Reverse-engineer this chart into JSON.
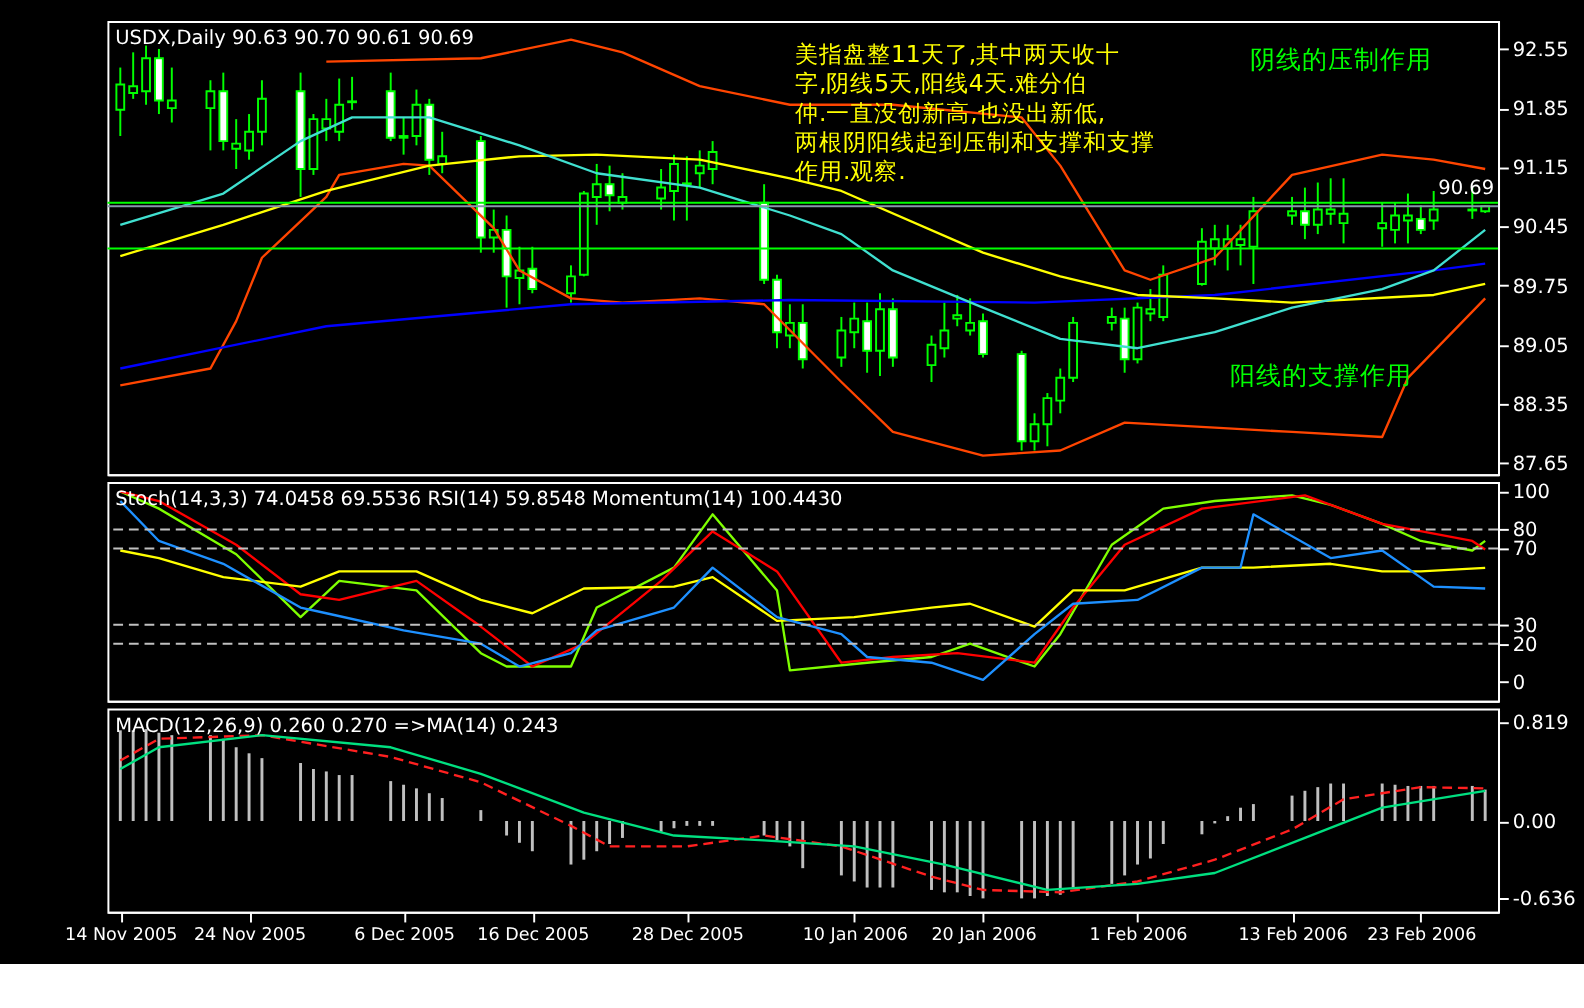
{
  "chart_data": [
    {
      "type": "candlestick",
      "title": "USDX,Daily  90.63 90.70 90.61 90.69",
      "tick_labels": "y",
      "xlim": [
        "2005-11-13",
        "2006-03-01"
      ],
      "x": [
        "2005-11-14",
        "2005-11-15",
        "2005-11-16",
        "2005-11-17",
        "2005-11-18",
        "2005-11-21",
        "2005-11-22",
        "2005-11-23",
        "2005-11-24",
        "2005-11-25",
        "2005-11-28",
        "2005-11-29",
        "2005-11-30",
        "2005-12-01",
        "2005-12-02",
        "2005-12-05",
        "2005-12-06",
        "2005-12-07",
        "2005-12-08",
        "2005-12-09",
        "2005-12-12",
        "2005-12-13",
        "2005-12-14",
        "2005-12-15",
        "2005-12-16",
        "2005-12-19",
        "2005-12-20",
        "2005-12-21",
        "2005-12-22",
        "2005-12-23",
        "2005-12-26",
        "2005-12-27",
        "2005-12-28",
        "2005-12-29",
        "2005-12-30",
        "2006-01-03",
        "2006-01-04",
        "2006-01-05",
        "2006-01-06",
        "2006-01-09",
        "2006-01-10",
        "2006-01-11",
        "2006-01-12",
        "2006-01-13",
        "2006-01-16",
        "2006-01-17",
        "2006-01-18",
        "2006-01-19",
        "2006-01-20",
        "2006-01-23",
        "2006-01-24",
        "2006-01-25",
        "2006-01-26",
        "2006-01-27",
        "2006-01-30",
        "2006-01-31",
        "2006-02-01",
        "2006-02-02",
        "2006-02-03",
        "2006-02-06",
        "2006-02-07",
        "2006-02-08",
        "2006-02-09",
        "2006-02-10",
        "2006-02-13",
        "2006-02-14",
        "2006-02-15",
        "2006-02-16",
        "2006-02-17",
        "2006-02-20",
        "2006-02-21",
        "2006-02-22",
        "2006-02-23",
        "2006-02-24",
        "2006-02-27",
        "2006-02-28"
      ],
      "ohlc": [
        [
          91.83,
          92.33,
          91.52,
          92.13
        ],
        [
          92.03,
          92.51,
          91.96,
          92.11
        ],
        [
          92.05,
          92.59,
          91.89,
          92.44
        ],
        [
          92.44,
          92.55,
          91.78,
          91.94
        ],
        [
          91.85,
          92.33,
          91.68,
          91.94
        ],
        [
          91.85,
          92.18,
          91.35,
          92.05
        ],
        [
          92.05,
          92.27,
          91.35,
          91.46
        ],
        [
          91.37,
          91.72,
          91.13,
          91.43
        ],
        [
          91.35,
          91.78,
          91.24,
          91.57
        ],
        [
          91.57,
          92.18,
          91.41,
          91.96
        ],
        [
          92.05,
          92.27,
          90.8,
          91.13
        ],
        [
          91.13,
          91.78,
          91.06,
          91.72
        ],
        [
          91.61,
          91.96,
          91.46,
          91.72
        ],
        [
          91.57,
          92.2,
          91.46,
          91.89
        ],
        [
          91.92,
          92.22,
          91.83,
          91.93
        ],
        [
          92.05,
          92.27,
          91.46,
          91.5
        ],
        [
          91.5,
          91.74,
          91.3,
          91.52
        ],
        [
          91.52,
          92.07,
          91.41,
          91.89
        ],
        [
          91.89,
          91.96,
          91.06,
          91.24
        ],
        [
          91.19,
          91.57,
          91.08,
          91.28
        ],
        [
          91.46,
          91.52,
          90.14,
          90.32
        ],
        [
          90.32,
          90.65,
          90.14,
          90.41
        ],
        [
          90.41,
          90.58,
          89.49,
          89.86
        ],
        [
          89.84,
          90.21,
          89.53,
          89.93
        ],
        [
          89.95,
          90.21,
          89.66,
          89.71
        ],
        [
          89.66,
          89.99,
          89.55,
          89.86
        ],
        [
          89.88,
          90.87,
          89.86,
          90.84
        ],
        [
          90.8,
          91.19,
          90.47,
          90.95
        ],
        [
          90.95,
          91.17,
          90.63,
          90.82
        ],
        [
          90.73,
          91.08,
          90.65,
          90.8
        ],
        [
          90.78,
          91.13,
          90.65,
          90.91
        ],
        [
          90.87,
          91.3,
          90.52,
          91.19
        ],
        [
          90.95,
          91.28,
          90.52,
          90.96
        ],
        [
          91.08,
          91.35,
          90.91,
          91.17
        ],
        [
          91.13,
          91.46,
          90.95,
          91.33
        ],
        [
          90.73,
          90.95,
          89.77,
          89.82
        ],
        [
          89.82,
          89.88,
          89.01,
          89.2
        ],
        [
          89.16,
          89.53,
          89.01,
          89.31
        ],
        [
          89.31,
          89.53,
          88.77,
          88.88
        ],
        [
          88.9,
          89.38,
          88.79,
          89.22
        ],
        [
          89.2,
          89.55,
          89.01,
          89.36
        ],
        [
          89.33,
          89.55,
          88.72,
          88.98
        ],
        [
          88.98,
          89.66,
          88.68,
          89.47
        ],
        [
          89.47,
          89.6,
          88.79,
          88.9
        ],
        [
          88.81,
          89.16,
          88.61,
          89.05
        ],
        [
          89.01,
          89.55,
          88.9,
          89.22
        ],
        [
          89.36,
          89.64,
          89.27,
          89.4
        ],
        [
          89.22,
          89.6,
          89.16,
          89.31
        ],
        [
          89.33,
          89.42,
          88.9,
          88.94
        ],
        [
          88.94,
          88.98,
          87.8,
          87.91
        ],
        [
          87.91,
          88.24,
          87.8,
          88.11
        ],
        [
          88.11,
          88.48,
          87.85,
          88.42
        ],
        [
          88.39,
          88.77,
          88.24,
          88.66
        ],
        [
          88.66,
          89.38,
          88.61,
          89.31
        ],
        [
          89.31,
          89.49,
          89.22,
          89.38
        ],
        [
          89.36,
          89.49,
          88.72,
          88.88
        ],
        [
          88.88,
          89.55,
          88.83,
          89.49
        ],
        [
          89.42,
          89.71,
          89.33,
          89.47
        ],
        [
          89.38,
          89.99,
          89.33,
          89.88
        ],
        [
          89.77,
          90.43,
          89.75,
          90.27
        ],
        [
          90.19,
          90.47,
          89.99,
          90.3
        ],
        [
          90.19,
          90.47,
          89.93,
          90.3
        ],
        [
          90.23,
          90.47,
          89.99,
          90.3
        ],
        [
          90.21,
          90.8,
          89.77,
          90.63
        ],
        [
          90.58,
          90.8,
          90.47,
          90.63
        ],
        [
          90.63,
          90.91,
          90.3,
          90.47
        ],
        [
          90.47,
          90.97,
          90.36,
          90.65
        ],
        [
          90.6,
          91.02,
          90.47,
          90.65
        ],
        [
          90.49,
          91.02,
          90.25,
          90.6
        ],
        [
          90.43,
          90.73,
          90.21,
          90.49
        ],
        [
          90.41,
          90.73,
          90.25,
          90.58
        ],
        [
          90.52,
          90.84,
          90.25,
          90.58
        ],
        [
          90.54,
          90.7,
          90.36,
          90.41
        ],
        [
          90.52,
          90.87,
          90.41,
          90.65
        ],
        [
          90.64,
          90.91,
          90.54,
          90.65
        ],
        [
          90.63,
          90.7,
          90.61,
          90.69
        ]
      ],
      "series": [
        {
          "type": "line",
          "color": "#ff4500",
          "x": [
            "2005-11-30",
            "2005-12-12",
            "2005-12-19",
            "2005-12-23",
            "2005-12-29",
            "2006-01-05",
            "2006-01-13",
            "2006-01-23",
            "2006-01-26",
            "2006-01-31",
            "2006-02-02",
            "2006-02-07",
            "2006-02-13",
            "2006-02-20",
            "2006-02-24",
            "2006-02-28"
          ],
          "values": [
            92.4,
            92.44,
            92.66,
            92.51,
            92.11,
            91.89,
            91.89,
            91.74,
            91.17,
            89.93,
            89.82,
            90.08,
            91.06,
            91.3,
            91.24,
            91.13
          ]
        },
        {
          "type": "line",
          "color": "#ff4500",
          "x": [
            "2005-11-14",
            "2005-11-21",
            "2005-11-23",
            "2005-11-25",
            "2005-11-30",
            "2005-12-01",
            "2005-12-06",
            "2005-12-08",
            "2005-12-13",
            "2005-12-15",
            "2005-12-19",
            "2005-12-23",
            "2005-12-29",
            "2006-01-03",
            "2006-01-09",
            "2006-01-13",
            "2006-01-20",
            "2006-01-26",
            "2006-01-31",
            "2006-02-07",
            "2006-02-13",
            "2006-02-20",
            "2006-02-22",
            "2006-02-28"
          ],
          "values": [
            88.57,
            88.77,
            89.33,
            90.08,
            90.8,
            91.06,
            91.19,
            91.17,
            90.43,
            89.93,
            89.6,
            89.55,
            89.6,
            89.53,
            88.61,
            88.02,
            87.74,
            87.8,
            88.13,
            88.07,
            88.02,
            87.96,
            88.66,
            89.6
          ]
        },
        {
          "type": "line",
          "color": "#0000ff",
          "x": [
            "2005-11-14",
            "2005-11-30",
            "2005-12-19",
            "2006-01-05",
            "2006-01-24",
            "2006-02-07",
            "2006-02-24",
            "2006-02-28"
          ],
          "values": [
            88.77,
            89.27,
            89.53,
            89.58,
            89.55,
            89.64,
            89.93,
            90.01
          ]
        },
        {
          "type": "line",
          "color": "#ffff00",
          "x": [
            "2005-11-14",
            "2005-11-22",
            "2005-11-30",
            "2005-12-08",
            "2005-12-15",
            "2005-12-21",
            "2005-12-29",
            "2006-01-05",
            "2006-01-09",
            "2006-01-20",
            "2006-01-26",
            "2006-02-01",
            "2006-02-07",
            "2006-02-13",
            "2006-02-24",
            "2006-02-28"
          ],
          "values": [
            90.1,
            90.47,
            90.87,
            91.17,
            91.28,
            91.3,
            91.24,
            91.02,
            90.87,
            90.14,
            89.86,
            89.64,
            89.6,
            89.55,
            89.64,
            89.77
          ]
        },
        {
          "type": "line",
          "color": "#40e0d0",
          "x": [
            "2005-11-14",
            "2005-11-22",
            "2005-11-28",
            "2005-12-02",
            "2005-12-08",
            "2005-12-15",
            "2005-12-21",
            "2005-12-29",
            "2006-01-05",
            "2006-01-09",
            "2006-01-13",
            "2006-01-20",
            "2006-01-26",
            "2006-02-01",
            "2006-02-07",
            "2006-02-13",
            "2006-02-20",
            "2006-02-24",
            "2006-02-28"
          ],
          "values": [
            90.47,
            90.84,
            91.46,
            91.74,
            91.74,
            91.41,
            91.08,
            90.91,
            90.58,
            90.36,
            89.93,
            89.49,
            89.12,
            89.01,
            89.2,
            89.49,
            89.71,
            89.93,
            90.41
          ]
        }
      ],
      "ref_lines": [
        {
          "axis": "y",
          "value": 90.73,
          "color": "#00ff00"
        },
        {
          "axis": "y",
          "value": 90.19,
          "color": "#00ff00"
        },
        {
          "axis": "y",
          "value": 90.69,
          "label": "90.69",
          "color": "#8899aa"
        }
      ],
      "annotations": [
        "美指盘整11天了,其中两天收十字,阴线5天,阳线4天.难分伯仲.一直没创新高,也没出新低,两根阴阳线起到压制和支撑和支撑作用.观察.",
        "阴线的压制作用",
        "阳线的支撑作用"
      ],
      "ylim": [
        87.52,
        92.88
      ],
      "yticks": [
        92.55,
        91.85,
        91.15,
        90.45,
        89.75,
        89.05,
        88.35,
        87.65
      ]
    },
    {
      "type": "line",
      "title": "Stoch(14,3,3) 74.0458 69.5536  RSI(14) 59.8548  Momentum(14) 100.4430",
      "tick_labels": "y",
      "xlim": [
        "2005-11-13",
        "2006-03-01"
      ],
      "series": [
        {
          "color": "#7fff00",
          "x": [
            "2005-11-14",
            "2005-11-17",
            "2005-11-23",
            "2005-11-28",
            "2005-12-01",
            "2005-12-07",
            "2005-12-12",
            "2005-12-14",
            "2005-12-19",
            "2005-12-21",
            "2005-12-27",
            "2005-12-30",
            "2006-01-04",
            "2006-01-05",
            "2006-01-11",
            "2006-01-16",
            "2006-01-19",
            "2006-01-24",
            "2006-01-26",
            "2006-01-30",
            "2006-02-03",
            "2006-02-07",
            "2006-02-13",
            "2006-02-16",
            "2006-02-20",
            "2006-02-23",
            "2006-02-27",
            "2006-02-28"
          ],
          "values": [
            100,
            91,
            67,
            34,
            53,
            48,
            15,
            8,
            8,
            39,
            60,
            88,
            48,
            6,
            10,
            13,
            20,
            8,
            25,
            72,
            91,
            95,
            98,
            93,
            83,
            74,
            69,
            74.05
          ]
        },
        {
          "color": "#ff0000",
          "x": [
            "2005-11-14",
            "2005-11-17",
            "2005-11-23",
            "2005-11-28",
            "2005-12-01",
            "2005-12-07",
            "2005-12-12",
            "2005-12-16",
            "2005-12-20",
            "2005-12-26",
            "2005-12-30",
            "2006-01-04",
            "2006-01-09",
            "2006-01-13",
            "2006-01-18",
            "2006-01-24",
            "2006-01-27",
            "2006-01-31",
            "2006-02-06",
            "2006-02-14",
            "2006-02-20",
            "2006-02-27",
            "2006-02-28"
          ],
          "values": [
            100,
            95,
            72,
            46,
            43,
            53,
            29,
            8,
            20,
            53,
            79,
            58,
            10,
            13,
            15,
            10,
            39,
            72,
            91,
            98,
            83,
            74,
            69.55
          ]
        },
        {
          "color": "#ffff00",
          "x": [
            "2005-11-14",
            "2005-11-17",
            "2005-11-22",
            "2005-11-28",
            "2005-12-01",
            "2005-12-07",
            "2005-12-12",
            "2005-12-16",
            "2005-12-20",
            "2005-12-27",
            "2005-12-30",
            "2006-01-04",
            "2006-01-10",
            "2006-01-16",
            "2006-01-19",
            "2006-01-24",
            "2006-01-27",
            "2006-01-31",
            "2006-02-06",
            "2006-02-10",
            "2006-02-16",
            "2006-02-20",
            "2006-02-23",
            "2006-02-28"
          ],
          "values": [
            69,
            65,
            55,
            50,
            58,
            58,
            43,
            36,
            49,
            50,
            55,
            32,
            34,
            39,
            41,
            29,
            48,
            48,
            60,
            60,
            62,
            58,
            58,
            59.85
          ]
        },
        {
          "color": "#1e90ff",
          "x": [
            "2005-11-14",
            "2005-11-17",
            "2005-11-22",
            "2005-11-28",
            "2005-11-30",
            "2005-12-06",
            "2005-12-12",
            "2005-12-15",
            "2005-12-19",
            "2005-12-21",
            "2005-12-27",
            "2005-12-30",
            "2006-01-04",
            "2006-01-09",
            "2006-01-11",
            "2006-01-16",
            "2006-01-20",
            "2006-01-24",
            "2006-01-27",
            "2006-02-01",
            "2006-02-06",
            "2006-02-09",
            "2006-02-10",
            "2006-02-16",
            "2006-02-20",
            "2006-02-24",
            "2006-02-28"
          ],
          "values": [
            95,
            74,
            62,
            39,
            36,
            27,
            20,
            8,
            15,
            27,
            39,
            60,
            34,
            25,
            13,
            10,
            1,
            25,
            41,
            43,
            60,
            60,
            88,
            65,
            69,
            50,
            49
          ]
        }
      ],
      "ref_lines": [
        {
          "axis": "y",
          "value": 80,
          "color": "#c0c0c0",
          "line_style": "dashed"
        },
        {
          "axis": "y",
          "value": 70,
          "color": "#c0c0c0",
          "line_style": "dashed"
        },
        {
          "axis": "y",
          "value": 30,
          "color": "#c0c0c0",
          "line_style": "dashed"
        },
        {
          "axis": "y",
          "value": 20,
          "color": "#c0c0c0",
          "line_style": "dashed"
        }
      ],
      "ylim": [
        -10,
        105
      ],
      "yticks": [
        0,
        20,
        30,
        70,
        80,
        100
      ]
    },
    {
      "type": "bar",
      "title": "MACD(12,26,9) 0.260 0.270  =>MA(14) 0.243",
      "xlim": [
        "2005-11-13",
        "2006-03-01"
      ],
      "x": [
        "2005-11-14",
        "2005-11-15",
        "2005-11-16",
        "2005-11-17",
        "2005-11-18",
        "2005-11-21",
        "2005-11-22",
        "2005-11-23",
        "2005-11-24",
        "2005-11-25",
        "2005-11-28",
        "2005-11-29",
        "2005-11-30",
        "2005-12-01",
        "2005-12-02",
        "2005-12-05",
        "2005-12-06",
        "2005-12-07",
        "2005-12-08",
        "2005-12-09",
        "2005-12-12",
        "2005-12-13",
        "2005-12-14",
        "2005-12-15",
        "2005-12-16",
        "2005-12-19",
        "2005-12-20",
        "2005-12-21",
        "2005-12-22",
        "2005-12-23",
        "2005-12-26",
        "2005-12-27",
        "2005-12-28",
        "2005-12-29",
        "2005-12-30",
        "2006-01-03",
        "2006-01-04",
        "2006-01-05",
        "2006-01-06",
        "2006-01-09",
        "2006-01-10",
        "2006-01-11",
        "2006-01-12",
        "2006-01-13",
        "2006-01-16",
        "2006-01-17",
        "2006-01-18",
        "2006-01-19",
        "2006-01-20",
        "2006-01-23",
        "2006-01-24",
        "2006-01-25",
        "2006-01-26",
        "2006-01-27",
        "2006-01-30",
        "2006-01-31",
        "2006-02-01",
        "2006-02-02",
        "2006-02-03",
        "2006-02-06",
        "2006-02-07",
        "2006-02-08",
        "2006-02-09",
        "2006-02-10",
        "2006-02-13",
        "2006-02-14",
        "2006-02-15",
        "2006-02-16",
        "2006-02-17",
        "2006-02-20",
        "2006-02-21",
        "2006-02-22",
        "2006-02-23",
        "2006-02-24",
        "2006-02-27",
        "2006-02-28"
      ],
      "xticks": [
        {
          "value": "2005-11-14",
          "label": "14 Nov 2005"
        },
        {
          "value": "2005-11-24",
          "label": "24 Nov 2005"
        },
        {
          "value": "2005-12-06",
          "label": "6 Dec 2005"
        },
        {
          "value": "2005-12-16",
          "label": "16 Dec 2005"
        },
        {
          "value": "2005-12-28",
          "label": "28 Dec 2005"
        },
        {
          "value": "2006-01-10",
          "label": "10 Jan 2006"
        },
        {
          "value": "2006-01-20",
          "label": "20 Jan 2006"
        },
        {
          "value": "2006-02-01",
          "label": "1 Feb 2006"
        },
        {
          "value": "2006-02-13",
          "label": "13 Feb 2006"
        },
        {
          "value": "2006-02-23",
          "label": "23 Feb 2006"
        }
      ],
      "series": [
        {
          "type": "bar",
          "color": "#c0c0c0",
          "values": [
            0.75,
            0.75,
            0.76,
            0.73,
            0.71,
            0.71,
            0.68,
            0.61,
            0.56,
            0.52,
            0.48,
            0.43,
            0.41,
            0.38,
            0.38,
            0.33,
            0.3,
            0.27,
            0.23,
            0.19,
            0.09,
            0.0,
            -0.12,
            -0.18,
            -0.25,
            -0.36,
            -0.32,
            -0.25,
            -0.19,
            -0.14,
            -0.09,
            -0.06,
            -0.04,
            -0.04,
            -0.04,
            -0.12,
            -0.16,
            -0.21,
            -0.39,
            -0.45,
            -0.5,
            -0.55,
            -0.55,
            -0.55,
            -0.57,
            -0.59,
            -0.59,
            -0.62,
            -0.64,
            -0.64,
            -0.64,
            -0.62,
            -0.61,
            -0.55,
            -0.52,
            -0.45,
            -0.36,
            -0.31,
            -0.19,
            -0.11,
            -0.02,
            0.04,
            0.11,
            0.14,
            0.21,
            0.25,
            0.28,
            0.31,
            0.31,
            0.31,
            0.3,
            0.29,
            0.29,
            0.29,
            0.29,
            0.26
          ]
        },
        {
          "type": "line",
          "color": "#ff2020",
          "line_style": "dashed",
          "x": [
            "2005-11-14",
            "2005-11-17",
            "2005-11-25",
            "2005-12-05",
            "2005-12-12",
            "2005-12-19",
            "2005-12-22",
            "2005-12-28",
            "2006-01-03",
            "2006-01-09",
            "2006-01-16",
            "2006-01-20",
            "2006-01-26",
            "2006-02-01",
            "2006-02-07",
            "2006-02-13",
            "2006-02-17",
            "2006-02-23",
            "2006-02-28"
          ],
          "values": [
            0.5,
            0.68,
            0.71,
            0.53,
            0.32,
            -0.04,
            -0.21,
            -0.21,
            -0.12,
            -0.21,
            -0.46,
            -0.57,
            -0.59,
            -0.5,
            -0.32,
            -0.07,
            0.18,
            0.28,
            0.27
          ]
        },
        {
          "type": "line",
          "color": "#00e080",
          "x": [
            "2005-11-14",
            "2005-11-17",
            "2005-11-25",
            "2005-12-05",
            "2005-12-12",
            "2005-12-20",
            "2005-12-27",
            "2006-01-03",
            "2006-01-10",
            "2006-01-17",
            "2006-01-25",
            "2006-02-01",
            "2006-02-07",
            "2006-02-14",
            "2006-02-20",
            "2006-02-28"
          ],
          "values": [
            0.43,
            0.61,
            0.71,
            0.61,
            0.39,
            0.07,
            -0.12,
            -0.16,
            -0.21,
            -0.36,
            -0.57,
            -0.52,
            -0.43,
            -0.14,
            0.11,
            0.25
          ]
        }
      ],
      "ylim": [
        -0.75,
        0.93
      ],
      "yticks": [
        0.819,
        {
          "value": 0,
          "label": "0.00"
        },
        -0.636
      ]
    }
  ]
}
